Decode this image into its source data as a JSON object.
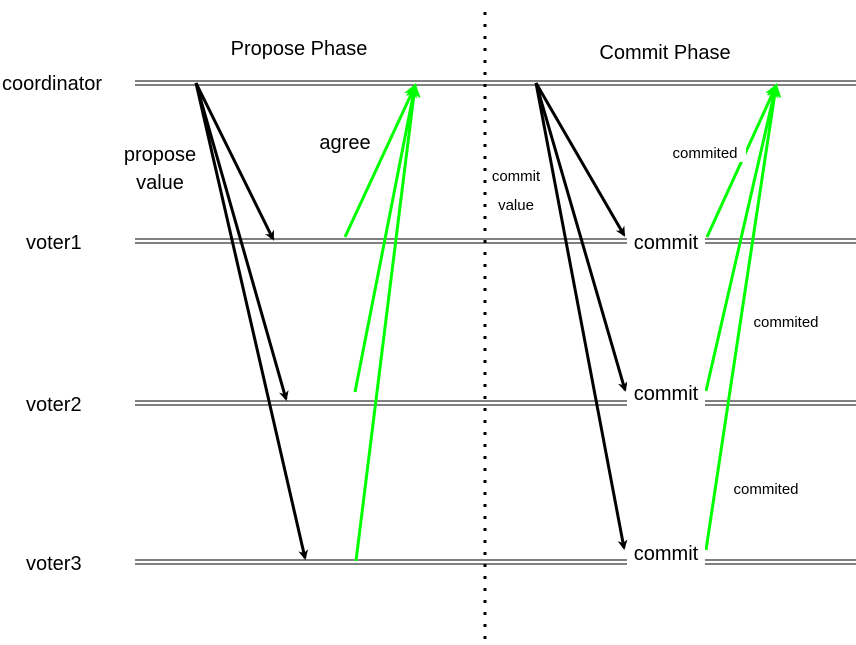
{
  "phases": {
    "propose": "Propose Phase",
    "commit": "Commit Phase"
  },
  "actors": {
    "coordinator": "coordinator",
    "voter1": "voter1",
    "voter2": "voter2",
    "voter3": "voter3"
  },
  "labels": {
    "propose_value_line1": "propose",
    "propose_value_line2": "value",
    "agree": "agree",
    "commit_value_line1": "commit",
    "commit_value_line2": "value",
    "commit_voter1": "commit",
    "commit_voter2": "commit",
    "commit_voter3": "commit",
    "commited_1": "commited",
    "commited_2": "commited",
    "commited_3": "commited"
  },
  "colors": {
    "message": "#000000",
    "ack": "#00ff00",
    "lifeline": "#000000",
    "separator": "#000000"
  }
}
